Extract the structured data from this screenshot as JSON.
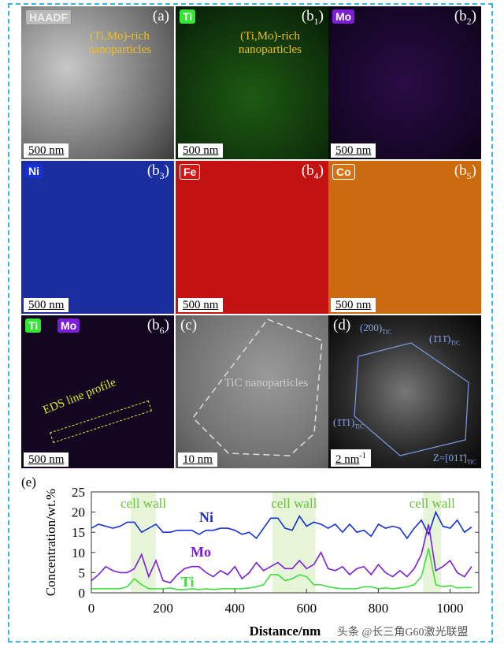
{
  "panels": {
    "a": {
      "tag": "HAADF",
      "label": "(a)",
      "scale": "500 nm",
      "annotation": "(Ti,Mo)-rich nanoparticles"
    },
    "b1": {
      "tag": "Ti",
      "label": "(b",
      "sub": "1",
      "scale": "500 nm",
      "annotation": "(Ti,Mo)-rich nanoparticles"
    },
    "b2": {
      "tag": "Mo",
      "label": "(b",
      "sub": "2",
      "scale": "500 nm"
    },
    "b3": {
      "tag": "Ni",
      "label": "(b",
      "sub": "3",
      "scale": "500 nm"
    },
    "b4": {
      "tag": "Fe",
      "label": "(b",
      "sub": "4",
      "scale": "500 nm"
    },
    "b5": {
      "tag": "Co",
      "label": "(b",
      "sub": "5",
      "scale": "500 nm"
    },
    "b6": {
      "tag": "Ti",
      "tag2": "Mo",
      "label": "(b",
      "sub": "6",
      "scale": "500 nm",
      "annotation": "EDS line profile"
    },
    "c": {
      "label": "(c)",
      "scale": "10 nm",
      "annotation": "TiC nanoparticles"
    },
    "d": {
      "label": "(d)",
      "scale": "2 nm",
      "scale_sup": "-1",
      "spot1": "(2̄00)",
      "spot2": "(1̄11̄)",
      "spot3": "(1̄1̄1)",
      "sub": "TiC",
      "zone": "Z=[011̄]"
    }
  },
  "colors": {
    "Ti": "#33e633",
    "Mo": "#7a1fd6",
    "Ni": "#1530d8",
    "Fe": "#d81515",
    "Co": "#d9700f",
    "frame": "#3cb4e6"
  },
  "chart_data": {
    "type": "line",
    "panel_label": "(e)",
    "xlabel": "Distance/nm",
    "ylabel": "Concentration/wt.%",
    "xlim": [
      0,
      1080
    ],
    "ylim": [
      0,
      25
    ],
    "xticks": [
      0,
      200,
      400,
      600,
      800,
      1000
    ],
    "yticks": [
      0,
      5,
      10,
      15,
      20,
      25
    ],
    "x_step": 20,
    "bands": [
      [
        110,
        180
      ],
      [
        505,
        625
      ],
      [
        925,
        975
      ]
    ],
    "band_label": "cell wall",
    "series": [
      {
        "name": "Ni",
        "color": "#1530d8",
        "values": [
          16,
          17,
          16.5,
          16,
          16.5,
          17.5,
          17.5,
          15,
          16,
          17,
          15,
          15,
          15.5,
          15.5,
          15.5,
          14.5,
          15.5,
          15.5,
          16,
          16,
          15.5,
          14.5,
          15,
          13.5,
          16,
          18.5,
          18.5,
          16,
          15.5,
          19,
          16.5,
          17.5,
          17,
          16,
          17,
          15,
          17,
          15,
          15.5,
          14,
          17,
          16,
          16.5,
          16,
          13.5,
          16,
          18,
          14.5,
          20,
          16.5,
          16,
          18,
          15,
          16.3
        ]
      },
      {
        "name": "Mo",
        "color": "#7a1fd6",
        "values": [
          3,
          4.5,
          6.5,
          5.5,
          5,
          5,
          6,
          9.5,
          4,
          8,
          3,
          2.5,
          4.5,
          6,
          6.5,
          6.5,
          5,
          4,
          5.5,
          4.5,
          6.5,
          3.5,
          5,
          7.5,
          5.5,
          6.5,
          7.5,
          6,
          6,
          8,
          6,
          7,
          10,
          6,
          5.5,
          6.5,
          4.5,
          6,
          6.5,
          4.5,
          7,
          5,
          4,
          5.5,
          4,
          6,
          9.5,
          17,
          5.5,
          6.5,
          8,
          5,
          4,
          6.5
        ]
      },
      {
        "name": "Ti",
        "color": "#3ce03c",
        "values": [
          1,
          1,
          1,
          1,
          1,
          1.5,
          3.5,
          2,
          1,
          1,
          1,
          1.2,
          0.8,
          0.8,
          1,
          0.8,
          1,
          0.8,
          1,
          1,
          1,
          1,
          1.2,
          1.5,
          2,
          4.5,
          4.5,
          3,
          3.5,
          4.5,
          4,
          2,
          2,
          1.5,
          1.2,
          1,
          1,
          1,
          1.5,
          1.5,
          1,
          1.2,
          1,
          1.2,
          1.5,
          2,
          4,
          11,
          2,
          1.5,
          1.8,
          1.2,
          1.3,
          1.3
        ]
      }
    ]
  },
  "watermark": "头条 @长三角G60激光联盟"
}
